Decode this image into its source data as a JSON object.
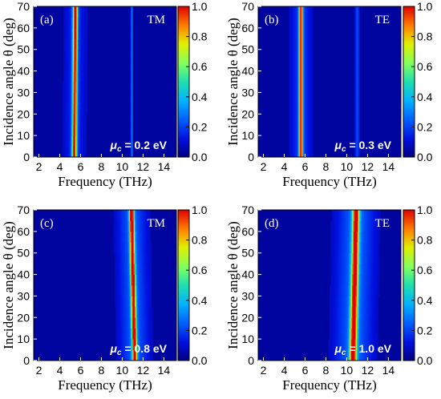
{
  "chart_data": [
    {
      "type": "heatmap",
      "panel_label": "(a)",
      "mode": "TM",
      "mu_symbol": "μ",
      "mu_subscript": "c",
      "mu_value": " = 0.2 eV",
      "xlabel": "Frequency (THz)",
      "ylabel": "Incidence angle θ (deg)",
      "xlim": [
        1.5,
        15.2
      ],
      "ylim": [
        0,
        70
      ],
      "xticks": [
        "2",
        "4",
        "6",
        "8",
        "10",
        "12",
        "14"
      ],
      "yticks": [
        "0",
        "10",
        "20",
        "30",
        "40",
        "50",
        "60",
        "70"
      ],
      "colorbar_ticks": [
        "0.0",
        "0.2",
        "0.4",
        "0.6",
        "0.8",
        "1.0"
      ],
      "colorbar_range": [
        0,
        1
      ],
      "resonance": {
        "f0": 5.4,
        "f70": 5.5,
        "width": 0.22,
        "peak": 0.92,
        "wing_width": 1.1,
        "wing_peak": 0.12
      },
      "secondary_resonance": {
        "f0": 10.9,
        "width": 0.09,
        "peak": 0.25
      }
    },
    {
      "type": "heatmap",
      "panel_label": "(b)",
      "mode": "TE",
      "mu_symbol": "μ",
      "mu_subscript": "c",
      "mu_value": " = 0.3 eV",
      "xlabel": "Frequency (THz)",
      "ylabel": "Incidence angle θ (deg)",
      "xlim": [
        1.5,
        15.2
      ],
      "ylim": [
        0,
        70
      ],
      "xticks": [
        "2",
        "4",
        "6",
        "8",
        "10",
        "12",
        "14"
      ],
      "yticks": [
        "0",
        "10",
        "20",
        "30",
        "40",
        "50",
        "60",
        "70"
      ],
      "colorbar_ticks": [
        "0.0",
        "0.2",
        "0.4",
        "0.6",
        "0.8",
        "1.0"
      ],
      "colorbar_range": [
        0,
        1
      ],
      "resonance": {
        "f0": 5.6,
        "f70": 5.6,
        "width": 0.18,
        "peak": 0.82,
        "wing_width": 1.0,
        "wing_peak": 0.15
      },
      "secondary_resonance": {
        "f0": 11.0,
        "width": 0.2,
        "peak": 0.18
      }
    },
    {
      "type": "heatmap",
      "panel_label": "(c)",
      "mode": "TM",
      "mu_symbol": "μ",
      "mu_subscript": "c",
      "mu_value": " = 0.8 eV",
      "xlabel": "Frequency (THz)",
      "ylabel": "Incidence angle θ (deg)",
      "xlim": [
        1.5,
        15.2
      ],
      "ylim": [
        0,
        70
      ],
      "xticks": [
        "2",
        "4",
        "6",
        "8",
        "10",
        "12",
        "14"
      ],
      "yticks": [
        "0",
        "10",
        "20",
        "30",
        "40",
        "50",
        "60",
        "70"
      ],
      "colorbar_ticks": [
        "0.0",
        "0.2",
        "0.4",
        "0.6",
        "0.8",
        "1.0"
      ],
      "colorbar_range": [
        0,
        1
      ],
      "resonance": {
        "f0": 11.2,
        "f70": 10.9,
        "width": 0.22,
        "peak": 0.97,
        "wing_width": 1.4,
        "wing_peak": 0.2
      },
      "secondary_resonance": null
    },
    {
      "type": "heatmap",
      "panel_label": "(d)",
      "mode": "TE",
      "mu_symbol": "μ",
      "mu_subscript": "c",
      "mu_value": " = 1.0 eV",
      "xlabel": "Frequency (THz)",
      "ylabel": "Incidence angle θ (deg)",
      "xlim": [
        1.5,
        15.2
      ],
      "ylim": [
        0,
        70
      ],
      "xticks": [
        "2",
        "4",
        "6",
        "8",
        "10",
        "12",
        "14"
      ],
      "yticks": [
        "0",
        "10",
        "20",
        "30",
        "40",
        "50",
        "60",
        "70"
      ],
      "colorbar_ticks": [
        "0.0",
        "0.2",
        "0.4",
        "0.6",
        "0.8",
        "1.0"
      ],
      "colorbar_range": [
        0,
        1
      ],
      "resonance": {
        "f0": 10.6,
        "f70": 10.9,
        "width": 0.32,
        "peak": 0.93,
        "wing_width": 1.8,
        "wing_peak": 0.22
      },
      "secondary_resonance": null
    }
  ]
}
